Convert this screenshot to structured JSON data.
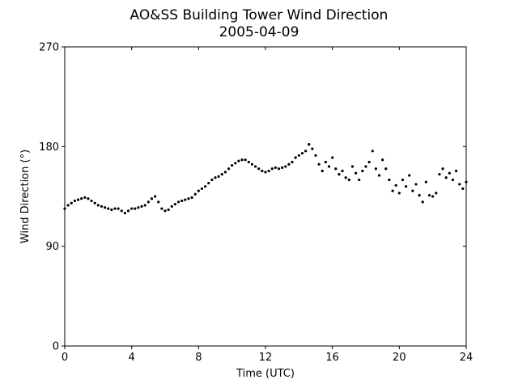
{
  "chart_data": {
    "type": "scatter",
    "title": "AO&SS Building Tower Wind Direction",
    "subtitle": "2005-04-09",
    "xlabel": "Time (UTC)",
    "ylabel": "Wind Direction (°)",
    "xlim": [
      0,
      24
    ],
    "ylim": [
      0,
      270
    ],
    "x_ticks": [
      0,
      4,
      8,
      12,
      16,
      20,
      24
    ],
    "y_ticks": [
      0,
      90,
      180,
      270
    ],
    "x_tick_labels": [
      "0",
      "4",
      "8",
      "12",
      "16",
      "20",
      "24"
    ],
    "y_tick_labels": [
      "0",
      "90",
      "180",
      "270"
    ],
    "grid": false,
    "legend": "none",
    "marker_color": "#000000",
    "series": [
      {
        "name": "",
        "x": [
          0.0,
          0.2,
          0.4,
          0.6,
          0.8,
          1.0,
          1.2,
          1.4,
          1.6,
          1.8,
          2.0,
          2.2,
          2.4,
          2.6,
          2.8,
          3.0,
          3.2,
          3.4,
          3.6,
          3.8,
          4.0,
          4.2,
          4.4,
          4.6,
          4.8,
          5.0,
          5.2,
          5.4,
          5.6,
          5.8,
          6.0,
          6.2,
          6.4,
          6.6,
          6.8,
          7.0,
          7.2,
          7.4,
          7.6,
          7.8,
          8.0,
          8.2,
          8.4,
          8.6,
          8.8,
          9.0,
          9.2,
          9.4,
          9.6,
          9.8,
          10.0,
          10.2,
          10.4,
          10.6,
          10.8,
          11.0,
          11.2,
          11.4,
          11.6,
          11.8,
          12.0,
          12.2,
          12.4,
          12.6,
          12.8,
          13.0,
          13.2,
          13.4,
          13.6,
          13.8,
          14.0,
          14.2,
          14.4,
          14.6,
          14.8,
          15.0,
          15.2,
          15.4,
          15.6,
          15.8,
          16.0,
          16.2,
          16.4,
          16.6,
          16.8,
          17.0,
          17.2,
          17.4,
          17.6,
          17.8,
          18.0,
          18.2,
          18.4,
          18.6,
          18.8,
          19.0,
          19.2,
          19.4,
          19.6,
          19.8,
          20.0,
          20.2,
          20.4,
          20.6,
          20.8,
          21.0,
          21.2,
          21.4,
          21.6,
          21.8,
          22.0,
          22.2,
          22.4,
          22.6,
          22.8,
          23.0,
          23.2,
          23.4,
          23.6,
          23.8,
          24.0
        ],
        "y": [
          124,
          127,
          129,
          131,
          132,
          133,
          134,
          133,
          131,
          129,
          127,
          126,
          125,
          124,
          123,
          124,
          124,
          122,
          120,
          122,
          124,
          124,
          125,
          126,
          127,
          130,
          133,
          135,
          130,
          124,
          122,
          123,
          126,
          128,
          130,
          131,
          132,
          133,
          134,
          137,
          140,
          142,
          144,
          147,
          150,
          152,
          153,
          155,
          157,
          160,
          163,
          165,
          167,
          168,
          168,
          166,
          164,
          162,
          160,
          158,
          157,
          158,
          160,
          161,
          160,
          161,
          162,
          164,
          166,
          170,
          172,
          174,
          176,
          182,
          178,
          172,
          164,
          158,
          166,
          162,
          170,
          160,
          155,
          158,
          152,
          150,
          162,
          156,
          150,
          158,
          162,
          166,
          176,
          160,
          154,
          168,
          160,
          150,
          140,
          145,
          138,
          150,
          144,
          154,
          140,
          146,
          136,
          130,
          148,
          136,
          135,
          138,
          155,
          160,
          152,
          156,
          150,
          158,
          146,
          142,
          148
        ]
      }
    ]
  }
}
